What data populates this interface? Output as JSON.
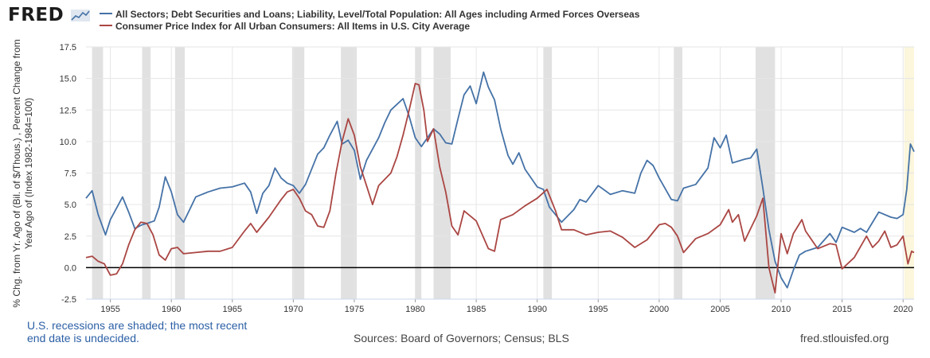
{
  "brand": {
    "logo_text": "FRED",
    "logo_mark": "chart-line-icon"
  },
  "chart_data": {
    "type": "line",
    "title": "",
    "ylabel_lines": [
      "% Chg. from Yr. Ago of (Bil. of $/Thous.) , Percent Change from",
      "Year Ago of (Index 1982-1984=100)"
    ],
    "xlabel": "",
    "xlim": [
      1953.0,
      2020.9
    ],
    "ylim": [
      -2.5,
      17.5
    ],
    "xticks": [
      1955,
      1960,
      1965,
      1970,
      1975,
      1980,
      1985,
      1990,
      1995,
      2000,
      2005,
      2010,
      2015,
      2020
    ],
    "yticks": [
      -2.5,
      0.0,
      2.5,
      5.0,
      7.5,
      10.0,
      12.5,
      15.0,
      17.5
    ],
    "ytick_labels": [
      "-2.5",
      "0.0",
      "2.5",
      "5.0",
      "7.5",
      "10.0",
      "12.5",
      "15.0",
      "17.5"
    ],
    "recessions": [
      [
        1953.5,
        1954.4
      ],
      [
        1957.6,
        1958.3
      ],
      [
        1960.3,
        1961.1
      ],
      [
        1969.9,
        1970.9
      ],
      [
        1973.9,
        1975.2
      ],
      [
        1980.0,
        1980.5
      ],
      [
        1981.5,
        1982.9
      ],
      [
        1990.5,
        1991.2
      ],
      [
        2001.2,
        2001.9
      ],
      [
        2007.9,
        2009.5
      ],
      [
        2020.1,
        2020.9
      ]
    ],
    "recession_color": "#e1e1e1",
    "undecided_color": "#fbf6dc",
    "series": [
      {
        "name": "All Sectors; Debt Securities and Loans; Liability, Level/Total Population: All Ages including Armed Forces Overseas",
        "color": "#4572a7",
        "x": [
          1953.0,
          1953.5,
          1954.0,
          1954.6,
          1955.0,
          1956.0,
          1956.5,
          1957.0,
          1957.6,
          1958.0,
          1958.6,
          1959.0,
          1959.5,
          1960.0,
          1960.5,
          1961.0,
          1961.5,
          1962.0,
          1963.0,
          1964.0,
          1965.0,
          1966.0,
          1966.5,
          1967.0,
          1967.5,
          1968.0,
          1968.5,
          1969.0,
          1969.5,
          1970.0,
          1970.5,
          1971.0,
          1972.0,
          1972.5,
          1973.0,
          1973.6,
          1974.0,
          1974.5,
          1975.0,
          1975.5,
          1976.0,
          1977.0,
          1977.5,
          1978.0,
          1979.0,
          1979.5,
          1980.0,
          1980.5,
          1981.0,
          1981.5,
          1982.0,
          1982.5,
          1983.0,
          1983.5,
          1984.0,
          1984.5,
          1985.0,
          1985.6,
          1986.0,
          1986.5,
          1987.0,
          1987.6,
          1988.0,
          1988.5,
          1989.0,
          1990.0,
          1990.5,
          1991.0,
          1992.0,
          1993.0,
          1993.5,
          1994.0,
          1995.0,
          1996.0,
          1997.0,
          1998.0,
          1998.5,
          1999.0,
          1999.5,
          2000.0,
          2001.0,
          2001.5,
          2002.0,
          2003.0,
          2004.0,
          2004.5,
          2005.0,
          2005.5,
          2006.0,
          2007.0,
          2007.5,
          2008.0,
          2008.5,
          2009.0,
          2009.5,
          2010.0,
          2010.5,
          2011.0,
          2011.5,
          2012.0,
          2013.0,
          2014.0,
          2014.5,
          2015.0,
          2016.0,
          2016.5,
          2017.0,
          2018.0,
          2019.0,
          2019.5,
          2020.0,
          2020.3,
          2020.6,
          2020.9
        ],
        "y": [
          5.5,
          6.1,
          4.2,
          2.6,
          3.8,
          5.6,
          4.4,
          3.1,
          3.4,
          3.5,
          3.7,
          4.8,
          7.2,
          6.0,
          4.2,
          3.6,
          4.6,
          5.6,
          6.0,
          6.3,
          6.4,
          6.7,
          6.0,
          4.3,
          5.9,
          6.5,
          7.9,
          7.1,
          6.7,
          6.5,
          5.9,
          6.6,
          9.0,
          9.5,
          10.5,
          11.6,
          9.8,
          10.1,
          9.3,
          7.0,
          8.5,
          10.3,
          11.5,
          12.5,
          13.4,
          12.0,
          10.3,
          9.6,
          10.3,
          11.0,
          10.6,
          9.9,
          9.8,
          11.8,
          13.7,
          14.4,
          13.0,
          15.5,
          14.3,
          13.3,
          11.0,
          8.9,
          8.2,
          9.1,
          7.8,
          6.4,
          6.2,
          4.8,
          3.6,
          4.6,
          5.4,
          5.2,
          6.5,
          5.8,
          6.1,
          5.9,
          7.5,
          8.5,
          8.1,
          7.1,
          5.4,
          5.3,
          6.3,
          6.6,
          7.9,
          10.3,
          9.5,
          10.5,
          8.3,
          8.6,
          8.7,
          9.4,
          6.3,
          3.0,
          0.5,
          -0.8,
          -1.6,
          -0.2,
          1.0,
          1.3,
          1.6,
          2.7,
          2.0,
          3.2,
          2.8,
          3.1,
          2.8,
          4.4,
          4.0,
          3.9,
          4.2,
          6.2,
          9.8,
          9.2
        ]
      },
      {
        "name": "Consumer Price Index for All Urban Consumers: All Items in U.S. City Average",
        "color": "#aa4643",
        "x": [
          1953.0,
          1953.5,
          1954.0,
          1954.5,
          1955.0,
          1955.5,
          1956.0,
          1956.5,
          1957.0,
          1957.5,
          1958.0,
          1958.5,
          1959.0,
          1959.5,
          1960.0,
          1960.5,
          1961.0,
          1962.0,
          1963.0,
          1964.0,
          1965.0,
          1966.0,
          1966.5,
          1967.0,
          1968.0,
          1969.0,
          1969.5,
          1970.0,
          1970.5,
          1971.0,
          1971.5,
          1972.0,
          1972.5,
          1973.0,
          1973.5,
          1974.0,
          1974.5,
          1975.0,
          1975.5,
          1976.0,
          1976.5,
          1977.0,
          1978.0,
          1978.5,
          1979.0,
          1979.5,
          1980.0,
          1980.3,
          1980.7,
          1981.0,
          1981.5,
          1982.0,
          1982.5,
          1983.0,
          1983.5,
          1984.0,
          1985.0,
          1986.0,
          1986.5,
          1987.0,
          1988.0,
          1989.0,
          1990.0,
          1990.8,
          1991.5,
          1992.0,
          1993.0,
          1994.0,
          1995.0,
          1996.0,
          1997.0,
          1998.0,
          1999.0,
          2000.0,
          2000.5,
          2001.0,
          2001.5,
          2002.0,
          2003.0,
          2004.0,
          2005.0,
          2005.7,
          2006.0,
          2006.5,
          2007.0,
          2008.0,
          2008.5,
          2009.0,
          2009.5,
          2010.0,
          2010.5,
          2011.0,
          2011.7,
          2012.0,
          2013.0,
          2014.0,
          2014.5,
          2015.0,
          2016.0,
          2017.0,
          2017.5,
          2018.0,
          2018.5,
          2019.0,
          2019.5,
          2020.0,
          2020.4,
          2020.7,
          2020.9
        ],
        "y": [
          0.8,
          0.9,
          0.5,
          0.3,
          -0.6,
          -0.5,
          0.3,
          1.8,
          3.0,
          3.6,
          3.5,
          2.6,
          1.0,
          0.6,
          1.5,
          1.6,
          1.1,
          1.2,
          1.3,
          1.3,
          1.6,
          2.9,
          3.5,
          2.8,
          4.0,
          5.4,
          6.0,
          6.2,
          5.5,
          4.5,
          4.2,
          3.3,
          3.2,
          4.5,
          7.5,
          10.0,
          11.8,
          10.5,
          8.0,
          6.5,
          5.0,
          6.5,
          7.5,
          8.8,
          10.5,
          12.5,
          14.6,
          14.5,
          12.5,
          10.0,
          11.0,
          8.0,
          6.0,
          3.3,
          2.6,
          4.5,
          3.7,
          1.5,
          1.3,
          3.8,
          4.2,
          4.9,
          5.5,
          6.2,
          4.5,
          3.0,
          3.0,
          2.6,
          2.8,
          2.9,
          2.4,
          1.6,
          2.2,
          3.4,
          3.5,
          3.2,
          2.5,
          1.2,
          2.3,
          2.7,
          3.4,
          4.6,
          3.6,
          4.2,
          2.1,
          4.1,
          5.5,
          0.0,
          -2.0,
          2.7,
          1.1,
          2.7,
          3.8,
          2.9,
          1.5,
          1.9,
          1.8,
          -0.1,
          0.8,
          2.5,
          1.6,
          2.1,
          2.9,
          1.6,
          1.8,
          2.5,
          0.3,
          1.3,
          1.2
        ]
      }
    ]
  },
  "footer": {
    "recession_note_line1": "U.S. recessions are shaded; the most recent",
    "recession_note_line2": "end date is undecided.",
    "sources": "Sources: Board of Governors; Census; BLS",
    "site": "fred.stlouisfed.org"
  }
}
